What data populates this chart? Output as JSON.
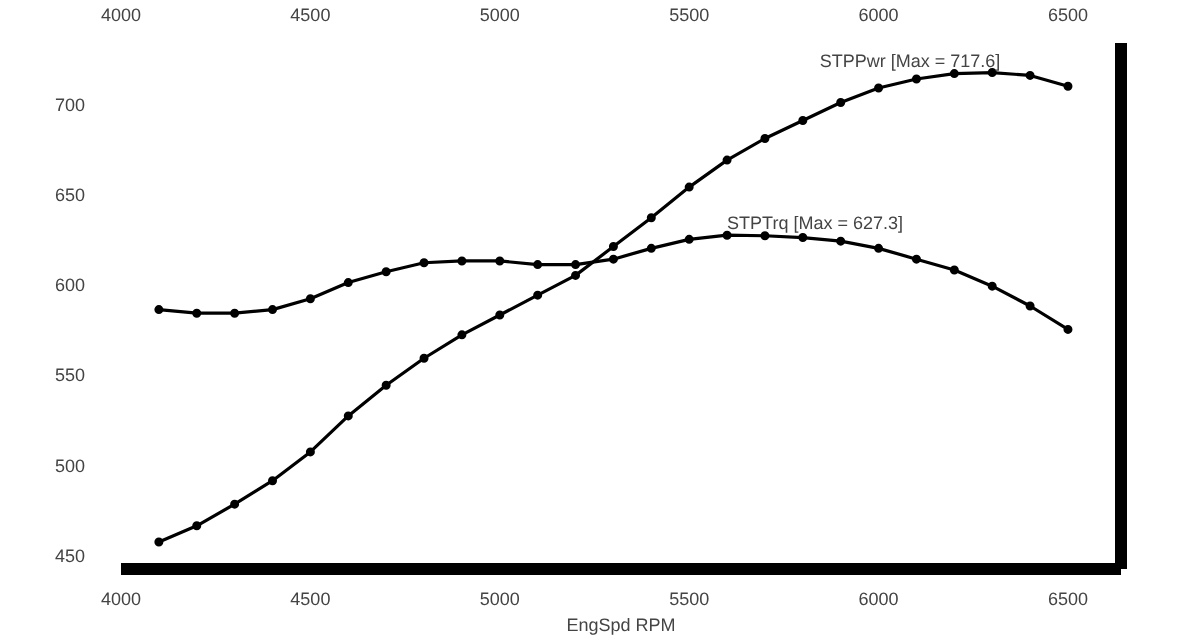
{
  "chart_data": {
    "type": "line",
    "xlabel": "EngSpd RPM",
    "x": [
      4100,
      4200,
      4300,
      4400,
      4500,
      4600,
      4700,
      4800,
      4900,
      5000,
      5100,
      5200,
      5300,
      5400,
      5500,
      5600,
      5700,
      5800,
      5900,
      6000,
      6100,
      6200,
      6300,
      6400,
      6500
    ],
    "series": [
      {
        "color": "#000000",
        "values": [
          457,
          466,
          478,
          491,
          507,
          527,
          544,
          559,
          572,
          583,
          594,
          605,
          621,
          637,
          654,
          669,
          681,
          691,
          701,
          709,
          714,
          717,
          717.6,
          716,
          710
        ]
      },
      {
        "color": "#000000",
        "values": [
          586,
          584,
          584,
          586,
          592,
          601,
          607,
          612,
          613,
          613,
          611,
          611,
          614,
          620,
          625,
          627.3,
          627,
          626,
          624,
          620,
          614,
          608,
          599,
          588,
          575
        ]
      }
    ],
    "annotations": [
      {
        "text": "STPPwr [Max = 717.6]",
        "x": 6300,
        "y": 717.6
      },
      {
        "text": "STPTrq [Max = 627.3]",
        "x": 5600,
        "y": 627.3
      }
    ],
    "xlim": [
      4000,
      6640
    ],
    "ylim": [
      442,
      734
    ],
    "xticks": [
      4000,
      4500,
      5000,
      5500,
      6000,
      6500
    ],
    "x2lim": [
      4000,
      6640
    ],
    "x2ticks": [
      4000,
      4500,
      5000,
      5500,
      6000,
      6500
    ],
    "yticks": [
      450,
      500,
      550,
      600,
      650,
      700
    ],
    "grid": false,
    "marker": "circle",
    "line_style": "solid"
  }
}
